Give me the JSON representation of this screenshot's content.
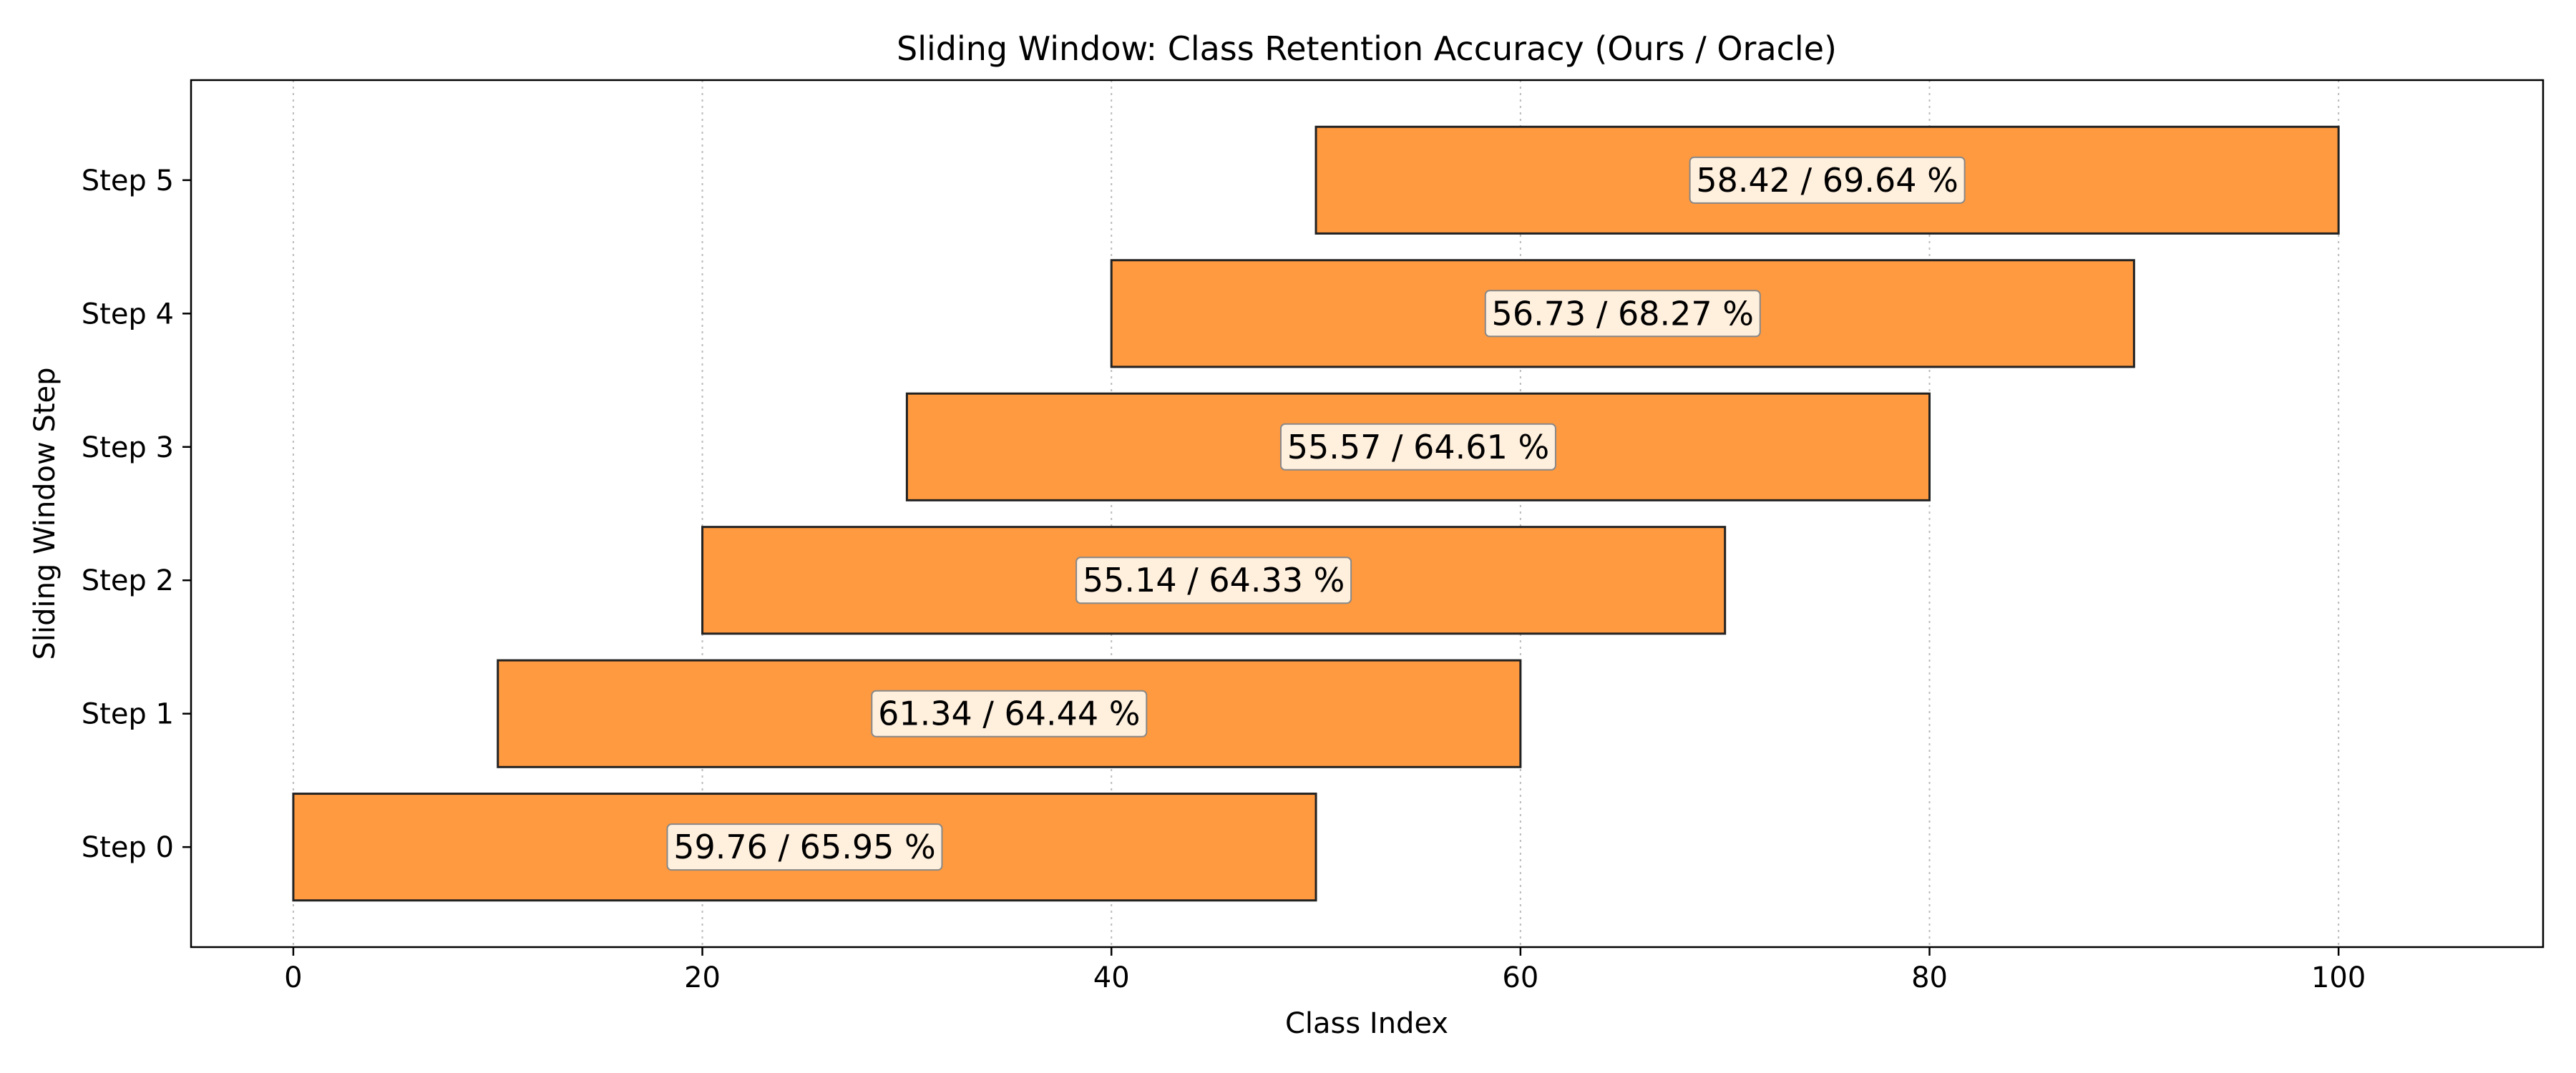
{
  "chart_data": {
    "type": "bar",
    "orientation": "horizontal-range",
    "title": "Sliding Window: Class Retention Accuracy (Ours / Oracle)",
    "xlabel": "Class Index",
    "ylabel": "Sliding Window Step",
    "xlim": [
      -5,
      110
    ],
    "xticks": [
      0,
      20,
      40,
      60,
      80,
      100
    ],
    "grid": "x-dotted",
    "bar_color": "#ff9a40",
    "edge_color": "#222222",
    "categories": [
      "Step 0",
      "Step 1",
      "Step 2",
      "Step 3",
      "Step 4",
      "Step 5"
    ],
    "bars": [
      {
        "category": "Step 0",
        "start": 0,
        "end": 50,
        "label": "59.76 / 65.95 %"
      },
      {
        "category": "Step 1",
        "start": 10,
        "end": 60,
        "label": "61.34 / 64.44 %"
      },
      {
        "category": "Step 2",
        "start": 20,
        "end": 70,
        "label": "55.14 / 64.33 %"
      },
      {
        "category": "Step 3",
        "start": 30,
        "end": 80,
        "label": "55.57 / 64.61 %"
      },
      {
        "category": "Step 4",
        "start": 40,
        "end": 90,
        "label": "56.73 / 68.27 %"
      },
      {
        "category": "Step 5",
        "start": 50,
        "end": 100,
        "label": "58.42 / 69.64 %"
      }
    ]
  }
}
